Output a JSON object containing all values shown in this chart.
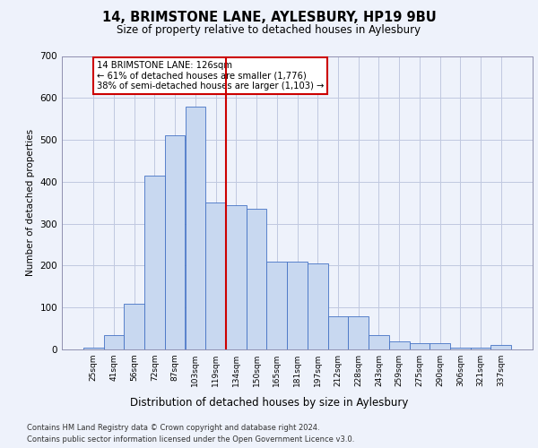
{
  "title_line1": "14, BRIMSTONE LANE, AYLESBURY, HP19 9BU",
  "title_line2": "Size of property relative to detached houses in Aylesbury",
  "xlabel": "Distribution of detached houses by size in Aylesbury",
  "ylabel": "Number of detached properties",
  "categories": [
    "25sqm",
    "41sqm",
    "56sqm",
    "72sqm",
    "87sqm",
    "103sqm",
    "119sqm",
    "134sqm",
    "150sqm",
    "165sqm",
    "181sqm",
    "197sqm",
    "212sqm",
    "228sqm",
    "243sqm",
    "259sqm",
    "275sqm",
    "290sqm",
    "306sqm",
    "321sqm",
    "337sqm"
  ],
  "bar_heights": [
    5,
    35,
    110,
    415,
    510,
    580,
    350,
    345,
    335,
    210,
    210,
    205,
    80,
    80,
    35,
    20,
    15,
    15,
    5,
    5,
    10
  ],
  "bar_color": "#c8d8f0",
  "bar_edge_color": "#4472c4",
  "vline_color": "#cc0000",
  "annotation_text": "14 BRIMSTONE LANE: 126sqm\n← 61% of detached houses are smaller (1,776)\n38% of semi-detached houses are larger (1,103) →",
  "annotation_box_color": "#cc0000",
  "ylim": [
    0,
    700
  ],
  "yticks": [
    0,
    100,
    200,
    300,
    400,
    500,
    600,
    700
  ],
  "footer_line1": "Contains HM Land Registry data © Crown copyright and database right 2024.",
  "footer_line2": "Contains public sector information licensed under the Open Government Licence v3.0.",
  "bg_color": "#eef2fb",
  "plot_bg_color": "#eef2fb",
  "grid_color": "#c0c8e0"
}
